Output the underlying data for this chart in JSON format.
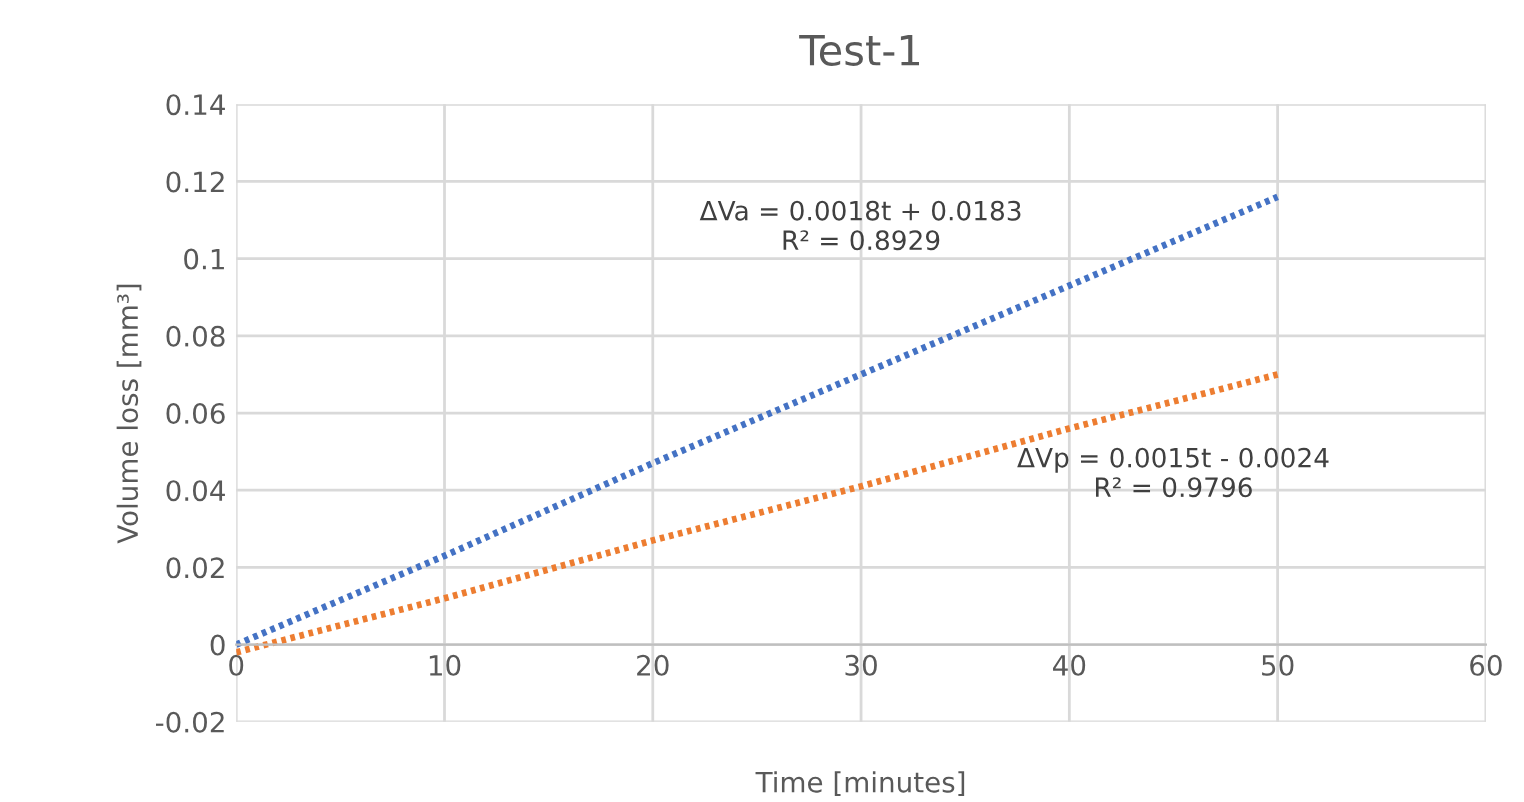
{
  "chart_data": {
    "type": "line",
    "title": "Test-1",
    "xlabel": "Time [minutes]",
    "ylabel": "Volume loss [mm³]",
    "x": [
      0,
      10,
      20,
      30,
      40,
      50
    ],
    "series": [
      {
        "color": "#4472c4",
        "values": [
          0.0,
          0.023,
          0.047,
          0.07,
          0.093,
          0.116
        ]
      },
      {
        "color": "#ed7d31",
        "values": [
          -0.002,
          0.012,
          0.027,
          0.041,
          0.056,
          0.07
        ]
      }
    ],
    "xlim": [
      0,
      60
    ],
    "xticks": [
      0,
      10,
      20,
      30,
      40,
      50,
      60
    ],
    "ylim": [
      -0.02,
      0.14
    ],
    "yticks": [
      {
        "value": -0.02,
        "label": "-0.02"
      },
      {
        "value": 0,
        "label": "0"
      },
      {
        "value": 0.02,
        "label": "0.02"
      },
      {
        "value": 0.04,
        "label": "0.04"
      },
      {
        "value": 0.06,
        "label": "0.06"
      },
      {
        "value": 0.08,
        "label": "0.08"
      },
      {
        "value": 0.1,
        "label": "0.1"
      },
      {
        "value": 0.12,
        "label": "0.12"
      },
      {
        "value": 0.14,
        "label": "0.14"
      }
    ],
    "annotations": [
      "ΔVa = 0.0018t + 0.0183\nR² = 0.8929",
      "ΔVp = 0.0015t - 0.0024\nR² = 0.9796"
    ],
    "grid": true,
    "marker": "none",
    "line_style": "dotted"
  }
}
